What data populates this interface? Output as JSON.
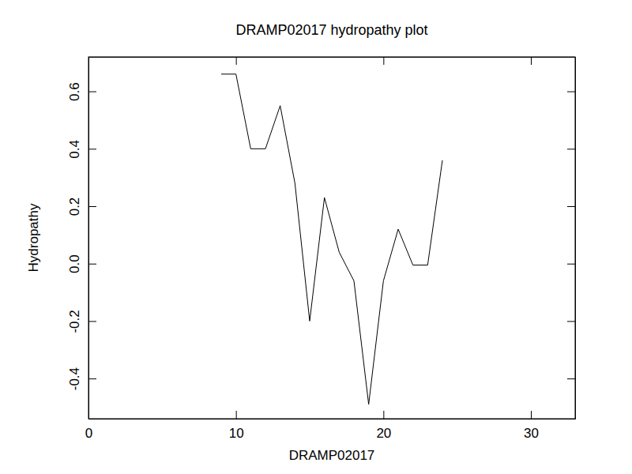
{
  "chart_data": {
    "type": "line",
    "title": "DRAMP02017 hydropathy plot",
    "x_label": "DRAMP02017",
    "y_label": "Hydropathy",
    "x": [
      9,
      10,
      11,
      12,
      13,
      14,
      15,
      16,
      17,
      18,
      19,
      20,
      21,
      22,
      23,
      24
    ],
    "values": [
      0.66,
      0.66,
      0.4,
      0.4,
      0.55,
      0.28,
      -0.2,
      0.23,
      0.04,
      -0.06,
      -0.49,
      -0.06,
      0.12,
      -0.005,
      -0.005,
      0.36
    ],
    "color": "#000000",
    "xlim": [
      0,
      33
    ],
    "xticks": [
      0,
      10,
      20,
      30
    ],
    "ylim": [
      -0.54,
      0.72
    ],
    "yticks": [
      -0.4,
      -0.2,
      {
        "value": 0,
        "label": "0.0"
      },
      0.2,
      0.4,
      0.6
    ],
    "grid": false
  }
}
